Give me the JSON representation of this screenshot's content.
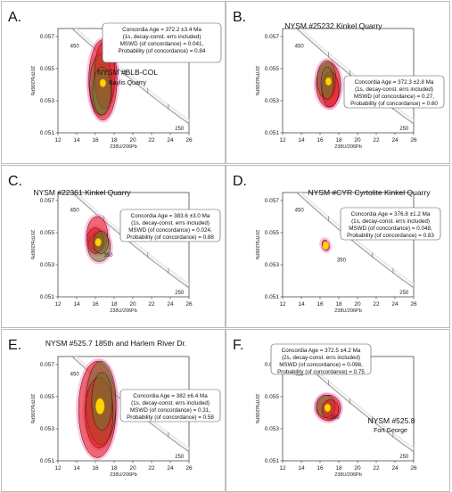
{
  "chart_data": [
    {
      "type": "scatter",
      "panel_label": "A.",
      "title": "NYSM #BLB-COL",
      "subtitle": "Baylis Quarry",
      "xlabel": "238U/206Pb",
      "ylabel": "207Pb/206Pb",
      "xlim": [
        12,
        26
      ],
      "ylim": [
        0.051,
        0.0575
      ],
      "xticks": [
        12,
        14,
        16,
        18,
        20,
        22,
        24,
        26
      ],
      "yticks": [
        0.051,
        0.053,
        0.055,
        0.057
      ],
      "concordia_ages": [
        450,
        250
      ],
      "result": [
        "Concordia Age = 372.2 ±3.4 Ma",
        "(1s, decay-const. errs included)",
        "MSWD (of concordance) = 0.041,",
        "Probability (of concordance) = 0.84"
      ],
      "concordia_age_point": {
        "x": 16.8,
        "y": 0.0541
      },
      "ellipses": [
        {
          "x": 16.8,
          "y": 0.0543,
          "rx": 1.5,
          "ry": 0.0025
        },
        {
          "x": 16.6,
          "y": 0.054,
          "rx": 1.2,
          "ry": 0.0019
        },
        {
          "x": 17.0,
          "y": 0.0546,
          "rx": 1.1,
          "ry": 0.0021
        },
        {
          "x": 16.7,
          "y": 0.0536,
          "rx": 1.0,
          "ry": 0.0015
        }
      ]
    },
    {
      "type": "scatter",
      "panel_label": "B.",
      "title": "NYSM #25232 Kinkel Quarry",
      "subtitle": "",
      "xlabel": "238U/206Pb",
      "ylabel": "207Pb/206Pb",
      "xlim": [
        12,
        26
      ],
      "ylim": [
        0.051,
        0.0575
      ],
      "xticks": [
        12,
        14,
        16,
        18,
        20,
        22,
        24,
        26
      ],
      "yticks": [
        0.051,
        0.053,
        0.055,
        0.057
      ],
      "concordia_ages": [
        450,
        250
      ],
      "result": [
        "Concordia Age = 372.3 ±2.8 Ma",
        "(1s, decay-const. errs included)",
        "MSWD (of concordance) = 0.27,",
        "Probability (of concordance) = 0.60"
      ],
      "concordia_age_point": {
        "x": 16.9,
        "y": 0.0542
      },
      "ellipses": [
        {
          "x": 16.9,
          "y": 0.054,
          "rx": 1.3,
          "ry": 0.0014
        },
        {
          "x": 16.7,
          "y": 0.0543,
          "rx": 1.0,
          "ry": 0.0012
        },
        {
          "x": 17.1,
          "y": 0.0537,
          "rx": 0.9,
          "ry": 0.0011
        },
        {
          "x": 16.8,
          "y": 0.0541,
          "rx": 0.7,
          "ry": 0.001
        }
      ]
    },
    {
      "type": "scatter",
      "panel_label": "C.",
      "title": "NYSM #22361 Kinkel Quarry",
      "subtitle": "",
      "xlabel": "238U/206Pb",
      "ylabel": "207Pb/206Pb",
      "xlim": [
        12,
        26
      ],
      "ylim": [
        0.051,
        0.0575
      ],
      "xticks": [
        12,
        14,
        16,
        18,
        20,
        22,
        24,
        26
      ],
      "yticks": [
        0.051,
        0.053,
        0.055,
        0.057
      ],
      "concordia_ages": [
        450,
        350,
        250
      ],
      "result": [
        "Concordia Age = 383.6 ±3.0 Ma",
        "(1s, decay-const. errs included)",
        "MSWD (of concordance) = 0.024,",
        "Probability (of concordance) = 0.88"
      ],
      "concordia_age_point": {
        "x": 16.3,
        "y": 0.0544
      },
      "ellipses": [
        {
          "x": 16.2,
          "y": 0.0549,
          "rx": 1.1,
          "ry": 0.0011
        },
        {
          "x": 16.4,
          "y": 0.0541,
          "rx": 1.2,
          "ry": 0.0009
        },
        {
          "x": 16.0,
          "y": 0.0545,
          "rx": 0.9,
          "ry": 0.0008
        },
        {
          "x": 16.6,
          "y": 0.0544,
          "rx": 0.8,
          "ry": 0.0007
        }
      ]
    },
    {
      "type": "scatter",
      "panel_label": "D.",
      "title": "NYSM #CYR Cyrtolite Kinkel Quarry",
      "subtitle": "",
      "xlabel": "238U/206Pb",
      "ylabel": "207Pb/206Pb",
      "xlim": [
        12,
        26
      ],
      "ylim": [
        0.051,
        0.0575
      ],
      "xticks": [
        12,
        14,
        16,
        18,
        20,
        22,
        24,
        26
      ],
      "yticks": [
        0.051,
        0.053,
        0.055,
        0.057
      ],
      "concordia_ages": [
        450,
        350,
        250
      ],
      "result": [
        "Concordia Age = 376.8 ±1.2 Ma",
        "(1s, decay-const. errs included)",
        "MSWD (of concordance) = 0.048,",
        "Probability (of concordance) = 0.83"
      ],
      "concordia_age_point": {
        "x": 16.6,
        "y": 0.0542
      },
      "ellipses": [
        {
          "x": 16.5,
          "y": 0.0543,
          "rx": 0.3,
          "ry": 0.00025
        },
        {
          "x": 16.7,
          "y": 0.0541,
          "rx": 0.28,
          "ry": 0.00022
        },
        {
          "x": 16.6,
          "y": 0.0542,
          "rx": 0.2,
          "ry": 0.0002
        }
      ]
    },
    {
      "type": "scatter",
      "panel_label": "E.",
      "title": "NYSM #525.7 185th and Harlem River Dr.",
      "subtitle": "",
      "xlabel": "238U/206Pb",
      "ylabel": "207Pb/206Pb",
      "xlim": [
        12,
        26
      ],
      "ylim": [
        0.051,
        0.0575
      ],
      "xticks": [
        12,
        14,
        16,
        18,
        20,
        22,
        24,
        26
      ],
      "yticks": [
        0.051,
        0.053,
        0.055,
        0.057
      ],
      "concordia_ages": [
        450,
        250
      ],
      "result": [
        "Concordia Age = 382 ±6.4 Ma",
        "(1s, decay-const. errs included)",
        "MSWD (of concordance) = 0.31,",
        "Probability (of concordance) = 0.58"
      ],
      "concordia_age_point": {
        "x": 16.5,
        "y": 0.0544
      },
      "ellipses": [
        {
          "x": 16.2,
          "y": 0.0542,
          "rx": 2.0,
          "ry": 0.003
        },
        {
          "x": 16.6,
          "y": 0.0546,
          "rx": 1.6,
          "ry": 0.0026
        },
        {
          "x": 16.4,
          "y": 0.054,
          "rx": 1.5,
          "ry": 0.0022
        },
        {
          "x": 16.7,
          "y": 0.0547,
          "rx": 1.1,
          "ry": 0.0018
        }
      ]
    },
    {
      "type": "scatter",
      "panel_label": "F.",
      "title": "NYSM #525.8",
      "subtitle": "Fort George",
      "xlabel": "238U/206Pb",
      "ylabel": "207Pb/206Pb",
      "xlim": [
        12,
        26
      ],
      "ylim": [
        0.051,
        0.0575
      ],
      "xticks": [
        12,
        14,
        16,
        18,
        20,
        22,
        24,
        26
      ],
      "yticks": [
        0.051,
        0.053,
        0.055,
        0.057
      ],
      "concordia_ages": [
        450,
        350,
        250
      ],
      "result": [
        "Concordia Age = 372.5 ±4.2 Ma",
        "(2s, decay-const. errs included)",
        "MSWD (of concordance) = 0.098,",
        "Probability (of concordance) = 0.75"
      ],
      "concordia_age_point": {
        "x": 16.8,
        "y": 0.0543
      },
      "ellipses": [
        {
          "x": 16.9,
          "y": 0.0543,
          "rx": 1.3,
          "ry": 0.0008
        },
        {
          "x": 16.6,
          "y": 0.0544,
          "rx": 1.0,
          "ry": 0.0007
        },
        {
          "x": 17.1,
          "y": 0.0542,
          "rx": 0.9,
          "ry": 0.0006
        }
      ]
    }
  ],
  "colors": {
    "ellipse_fill": "#e41a1c",
    "ellipse_olive": "#6b7a2e",
    "ellipse_halo": "#ff5aa8",
    "age_point": "#ffd400",
    "concordia": "#aaaaaa"
  }
}
